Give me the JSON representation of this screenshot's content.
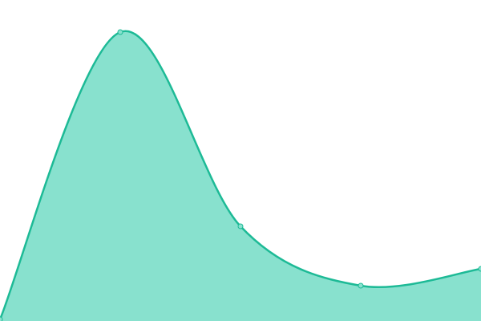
{
  "chart_data": {
    "type": "area",
    "categories": [
      null,
      null,
      null,
      null,
      null
    ],
    "values": [
      2,
      360,
      118,
      44,
      65
    ],
    "ylim": [
      0,
      400
    ],
    "color": "#1dba96",
    "fill": "#88e1ce"
  }
}
